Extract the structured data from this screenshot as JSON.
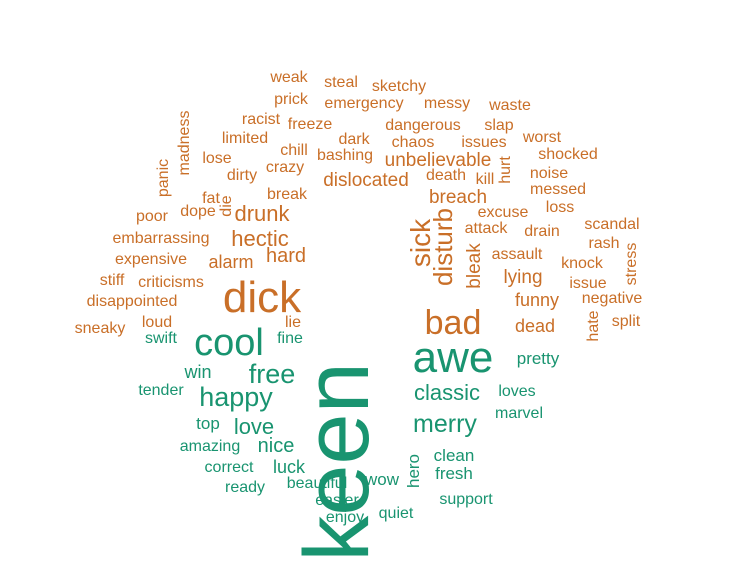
{
  "colors": {
    "negative": "#c96f28",
    "positive": "#199470"
  },
  "words": [
    {
      "text": "keen",
      "sentiment": "positive"
    },
    {
      "text": "dick",
      "sentiment": "negative"
    },
    {
      "text": "awe",
      "sentiment": "positive"
    },
    {
      "text": "cool",
      "sentiment": "positive"
    },
    {
      "text": "bad",
      "sentiment": "negative"
    },
    {
      "text": "sick",
      "sentiment": "negative"
    },
    {
      "text": "disturb",
      "sentiment": "negative"
    },
    {
      "text": "happy",
      "sentiment": "positive"
    },
    {
      "text": "free",
      "sentiment": "positive"
    },
    {
      "text": "merry",
      "sentiment": "positive"
    },
    {
      "text": "classic",
      "sentiment": "positive"
    },
    {
      "text": "love",
      "sentiment": "positive"
    },
    {
      "text": "hectic",
      "sentiment": "negative"
    },
    {
      "text": "drunk",
      "sentiment": "negative"
    },
    {
      "text": "breach",
      "sentiment": "negative"
    },
    {
      "text": "dislocated",
      "sentiment": "negative"
    },
    {
      "text": "unbelievable",
      "sentiment": "negative"
    },
    {
      "text": "nice",
      "sentiment": "positive"
    },
    {
      "text": "hard",
      "sentiment": "negative"
    },
    {
      "text": "alarm",
      "sentiment": "negative"
    },
    {
      "text": "lying",
      "sentiment": "negative"
    },
    {
      "text": "funny",
      "sentiment": "negative"
    },
    {
      "text": "dead",
      "sentiment": "negative"
    },
    {
      "text": "bleak",
      "sentiment": "negative"
    },
    {
      "text": "win",
      "sentiment": "positive"
    },
    {
      "text": "luck",
      "sentiment": "positive"
    },
    {
      "text": "hero",
      "sentiment": "positive"
    },
    {
      "text": "top",
      "sentiment": "positive"
    },
    {
      "text": "wow",
      "sentiment": "positive"
    },
    {
      "text": "clean",
      "sentiment": "positive"
    },
    {
      "text": "fresh",
      "sentiment": "positive"
    },
    {
      "text": "pretty",
      "sentiment": "positive"
    },
    {
      "text": "loves",
      "sentiment": "positive"
    },
    {
      "text": "marvel",
      "sentiment": "positive"
    },
    {
      "text": "tender",
      "sentiment": "positive"
    },
    {
      "text": "amazing",
      "sentiment": "positive"
    },
    {
      "text": "correct",
      "sentiment": "positive"
    },
    {
      "text": "ready",
      "sentiment": "positive"
    },
    {
      "text": "beautiful",
      "sentiment": "positive"
    },
    {
      "text": "easier",
      "sentiment": "positive"
    },
    {
      "text": "enjoy",
      "sentiment": "positive"
    },
    {
      "text": "quiet",
      "sentiment": "positive"
    },
    {
      "text": "support",
      "sentiment": "positive"
    },
    {
      "text": "swift",
      "sentiment": "positive"
    },
    {
      "text": "fine",
      "sentiment": "positive"
    },
    {
      "text": "lie",
      "sentiment": "negative"
    },
    {
      "text": "loud",
      "sentiment": "negative"
    },
    {
      "text": "sneaky",
      "sentiment": "negative"
    },
    {
      "text": "disappointed",
      "sentiment": "negative"
    },
    {
      "text": "criticisms",
      "sentiment": "negative"
    },
    {
      "text": "stiff",
      "sentiment": "negative"
    },
    {
      "text": "expensive",
      "sentiment": "negative"
    },
    {
      "text": "embarrassing",
      "sentiment": "negative"
    },
    {
      "text": "poor",
      "sentiment": "negative"
    },
    {
      "text": "dope",
      "sentiment": "negative"
    },
    {
      "text": "die",
      "sentiment": "negative"
    },
    {
      "text": "fat",
      "sentiment": "negative"
    },
    {
      "text": "panic",
      "sentiment": "negative"
    },
    {
      "text": "madness",
      "sentiment": "negative"
    },
    {
      "text": "lose",
      "sentiment": "negative"
    },
    {
      "text": "limited",
      "sentiment": "negative"
    },
    {
      "text": "racist",
      "sentiment": "negative"
    },
    {
      "text": "dirty",
      "sentiment": "negative"
    },
    {
      "text": "crazy",
      "sentiment": "negative"
    },
    {
      "text": "chill",
      "sentiment": "negative"
    },
    {
      "text": "break",
      "sentiment": "negative"
    },
    {
      "text": "freeze",
      "sentiment": "negative"
    },
    {
      "text": "prick",
      "sentiment": "negative"
    },
    {
      "text": "weak",
      "sentiment": "negative"
    },
    {
      "text": "steal",
      "sentiment": "negative"
    },
    {
      "text": "sketchy",
      "sentiment": "negative"
    },
    {
      "text": "emergency",
      "sentiment": "negative"
    },
    {
      "text": "messy",
      "sentiment": "negative"
    },
    {
      "text": "waste",
      "sentiment": "negative"
    },
    {
      "text": "dark",
      "sentiment": "negative"
    },
    {
      "text": "dangerous",
      "sentiment": "negative"
    },
    {
      "text": "slap",
      "sentiment": "negative"
    },
    {
      "text": "bashing",
      "sentiment": "negative"
    },
    {
      "text": "chaos",
      "sentiment": "negative"
    },
    {
      "text": "issues",
      "sentiment": "negative"
    },
    {
      "text": "worst",
      "sentiment": "negative"
    },
    {
      "text": "shocked",
      "sentiment": "negative"
    },
    {
      "text": "death",
      "sentiment": "negative"
    },
    {
      "text": "kill",
      "sentiment": "negative"
    },
    {
      "text": "hurt",
      "sentiment": "negative"
    },
    {
      "text": "noise",
      "sentiment": "negative"
    },
    {
      "text": "messed",
      "sentiment": "negative"
    },
    {
      "text": "excuse",
      "sentiment": "negative"
    },
    {
      "text": "loss",
      "sentiment": "negative"
    },
    {
      "text": "attack",
      "sentiment": "negative"
    },
    {
      "text": "drain",
      "sentiment": "negative"
    },
    {
      "text": "scandal",
      "sentiment": "negative"
    },
    {
      "text": "rash",
      "sentiment": "negative"
    },
    {
      "text": "assault",
      "sentiment": "negative"
    },
    {
      "text": "knock",
      "sentiment": "negative"
    },
    {
      "text": "stress",
      "sentiment": "negative"
    },
    {
      "text": "issue",
      "sentiment": "negative"
    },
    {
      "text": "negative",
      "sentiment": "negative"
    },
    {
      "text": "hate",
      "sentiment": "negative"
    },
    {
      "text": "split",
      "sentiment": "negative"
    }
  ]
}
